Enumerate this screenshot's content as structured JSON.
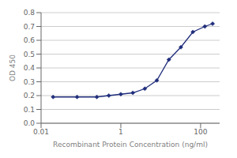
{
  "chart_data": {
    "type": "line",
    "xlabel": "Recombinant Protein Concentration (ng/ml)",
    "ylabel": "OD 450",
    "x": [
      0.02,
      0.08,
      0.25,
      0.5,
      1.0,
      2.0,
      4.0,
      8.0,
      16.0,
      32.0,
      64.0,
      128.0,
      200.0
    ],
    "series": [
      {
        "color": "#1f2d7b",
        "marker": "diamond",
        "line_style": "solid",
        "values": [
          0.19,
          0.19,
          0.19,
          0.2,
          0.21,
          0.22,
          0.25,
          0.31,
          0.46,
          0.55,
          0.66,
          0.7,
          0.72
        ]
      }
    ],
    "log": "x",
    "xlim": [
      0.01,
      300
    ],
    "xticks": [
      0.01,
      1,
      100
    ],
    "ylim": [
      0.0,
      0.8
    ],
    "yticks": [
      {
        "value": 0.0,
        "label": "0.0"
      },
      0.1,
      0.2,
      0.3,
      0.4,
      0.5,
      0.6,
      0.7,
      0.8
    ],
    "grid": "y"
  }
}
